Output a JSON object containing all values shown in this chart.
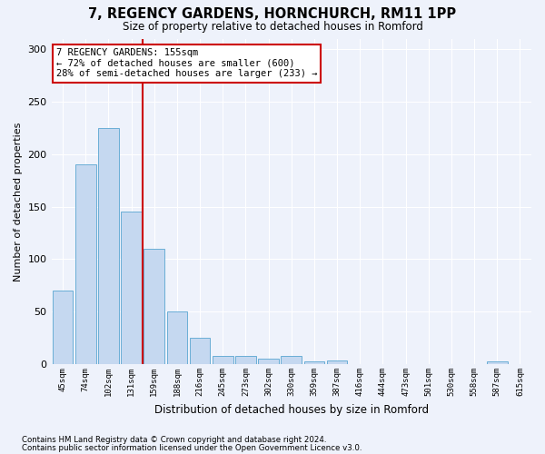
{
  "title": "7, REGENCY GARDENS, HORNCHURCH, RM11 1PP",
  "subtitle": "Size of property relative to detached houses in Romford",
  "xlabel": "Distribution of detached houses by size in Romford",
  "ylabel": "Number of detached properties",
  "bar_color": "#c5d8f0",
  "bar_edge_color": "#6aaed6",
  "background_color": "#eef2fb",
  "grid_color": "#ffffff",
  "bins": [
    "45sqm",
    "74sqm",
    "102sqm",
    "131sqm",
    "159sqm",
    "188sqm",
    "216sqm",
    "245sqm",
    "273sqm",
    "302sqm",
    "330sqm",
    "359sqm",
    "387sqm",
    "416sqm",
    "444sqm",
    "473sqm",
    "501sqm",
    "530sqm",
    "558sqm",
    "587sqm",
    "615sqm"
  ],
  "values": [
    70,
    190,
    225,
    145,
    110,
    50,
    25,
    8,
    8,
    5,
    8,
    3,
    4,
    0,
    0,
    0,
    0,
    0,
    0,
    3,
    0
  ],
  "vline_x_index": 4,
  "vline_color": "#cc0000",
  "annotation_text": "7 REGENCY GARDENS: 155sqm\n← 72% of detached houses are smaller (600)\n28% of semi-detached houses are larger (233) →",
  "annotation_box_color": "#ffffff",
  "annotation_box_edge": "#cc0000",
  "ylim": [
    0,
    310
  ],
  "yticks": [
    0,
    50,
    100,
    150,
    200,
    250,
    300
  ],
  "footnote1": "Contains HM Land Registry data © Crown copyright and database right 2024.",
  "footnote2": "Contains public sector information licensed under the Open Government Licence v3.0."
}
